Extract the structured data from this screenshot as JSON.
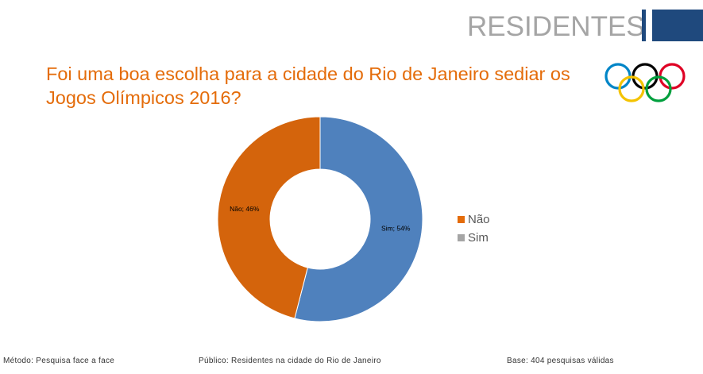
{
  "header": {
    "title": "RESIDENTES"
  },
  "question": "Foi uma boa escolha para a cidade do Rio de Janeiro sediar os Jogos Olímpicos 2016?",
  "logo": {
    "icon": "olympic-rings-icon",
    "colors": [
      "#0085c7",
      "#f4c300",
      "#000000",
      "#009f3d",
      "#df0024"
    ]
  },
  "chart_data": {
    "type": "pie",
    "donut": true,
    "slices": [
      {
        "label": "Sim",
        "value": 54,
        "data_label": "Sim; 54%",
        "color": "#4f81bd"
      },
      {
        "label": "Não",
        "value": 46,
        "data_label": "Não; 46%",
        "color": "#d4640c"
      }
    ],
    "legend": {
      "placement": "right",
      "entries": [
        {
          "label": "Não",
          "color": "#e46c0a"
        },
        {
          "label": "Sim",
          "color": "#a5a5a5"
        }
      ]
    }
  },
  "footer": {
    "method": "Método: Pesquisa face a face",
    "audience": "Público: Residentes na cidade do Rio de Janeiro",
    "base": "Base: 404 pesquisas válidas"
  }
}
